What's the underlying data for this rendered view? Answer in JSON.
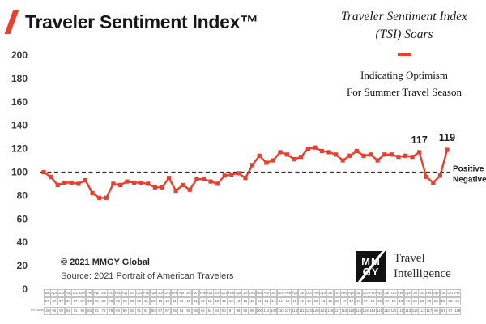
{
  "header": {
    "title": "Traveler Sentiment Index™"
  },
  "callout": {
    "headline_line1": "Traveler Sentiment Index",
    "headline_line2": "(TSI) Soars",
    "sub_line1": "Indicating Optimism",
    "sub_line2": "For Summer Travel Season"
  },
  "baseline_labels": {
    "positive": "Positive",
    "negative": "Negative"
  },
  "footer": {
    "copyright": "© 2021 MMGY Global",
    "source": "Source: 2021 Portrait of American Travelers",
    "logo_top": "MM",
    "logo_bottom": "GY",
    "logo_text_line1": "Travel",
    "logo_text_line2": "Intelligence"
  },
  "colors": {
    "accent_red": "#e7402e",
    "line": "#e7402e",
    "baseline": "#2f2f2f"
  },
  "chart_data": {
    "type": "line",
    "title": "Traveler Sentiment Index™",
    "series_label": "US Adults",
    "marker": "square",
    "grid": false,
    "legend": "none",
    "ylim": [
      0,
      200
    ],
    "yticks": [
      200,
      180,
      160,
      140,
      120,
      100,
      80,
      60,
      40,
      20,
      0
    ],
    "baseline_value": 100,
    "x_months": [
      "Mar",
      "Apr",
      "Jun",
      "Aug",
      "Oct",
      "Dec",
      "Feb",
      "Apr",
      "Jul",
      "Oct",
      "Feb",
      "Apr",
      "Jul",
      "Oct",
      "Feb",
      "Apr",
      "Jul",
      "Oct",
      "Feb",
      "Apr",
      "Jul",
      "Oct",
      "Feb",
      "Apr",
      "Jul",
      "Oct",
      "Feb",
      "Apr",
      "Jul",
      "Oct",
      "Feb",
      "Apr",
      "Jul",
      "Oct",
      "Feb",
      "Apr",
      "Jul",
      "Oct",
      "Feb",
      "Apr",
      "Jul",
      "Oct",
      "Feb",
      "Apr",
      "Jul",
      "Oct",
      "Feb",
      "Apr",
      "Jul",
      "Oct",
      "Feb",
      "Apr",
      "Jul",
      "Oct",
      "Feb",
      "Apr",
      "Jul",
      "Oct",
      "Feb"
    ],
    "x_years": [
      "07",
      "07",
      "07",
      "07",
      "07",
      "07",
      "08",
      "08",
      "08",
      "08",
      "09",
      "09",
      "09",
      "09",
      "10",
      "10",
      "10",
      "10",
      "11",
      "11",
      "11",
      "11",
      "12",
      "12",
      "12",
      "12",
      "13",
      "13",
      "13",
      "13",
      "14",
      "14",
      "14",
      "14",
      "15",
      "15",
      "15",
      "15",
      "16",
      "16",
      "16",
      "16",
      "17",
      "17",
      "17",
      "17",
      "18",
      "18",
      "18",
      "18",
      "19",
      "19",
      "19",
      "19",
      "20",
      "20",
      "20",
      "20",
      "21"
    ],
    "values": [
      100,
      96,
      89,
      91,
      91,
      90,
      93,
      82,
      78,
      78,
      90,
      89,
      92,
      91,
      91,
      90,
      87,
      87,
      95,
      84,
      89,
      85,
      94,
      94,
      92,
      90,
      97,
      98,
      99,
      95,
      106,
      114,
      108,
      110,
      117,
      115,
      111,
      113,
      120,
      121,
      118,
      117,
      115,
      110,
      114,
      118,
      114,
      115,
      110,
      115,
      115,
      113,
      114,
      113,
      117,
      96,
      91,
      97,
      119
    ],
    "point_labels": [
      {
        "index": 54,
        "label": "117"
      },
      {
        "index": 58,
        "label": "119"
      }
    ]
  }
}
